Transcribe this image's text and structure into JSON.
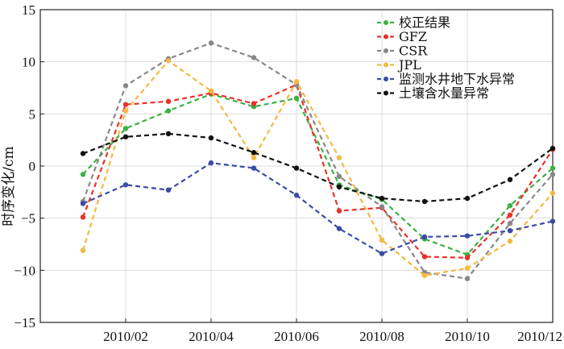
{
  "chart_data": {
    "type": "line",
    "title": "",
    "xlabel": "",
    "ylabel": "时序变化/cm",
    "ylim": [
      -15,
      15
    ],
    "yticks": [
      15,
      10,
      5,
      0,
      -5,
      -10,
      -15
    ],
    "ytick_labels": [
      "15",
      "10",
      "5",
      "0",
      "−5",
      "−10",
      "−15"
    ],
    "xlim": [
      "2010/00",
      "2010/12"
    ],
    "x": [
      "2010/01",
      "2010/02",
      "2010/03",
      "2010/04",
      "2010/05",
      "2010/06",
      "2010/07",
      "2010/08",
      "2010/09",
      "2010/10",
      "2010/11",
      "2010/12"
    ],
    "xticks": [
      "2010/02",
      "2010/04",
      "2010/06",
      "2010/08",
      "2010/10",
      "2010/12"
    ],
    "grid": true,
    "legend_position": "top-right",
    "series": [
      {
        "name": "校正结果",
        "color": "#3cb043",
        "values": [
          -0.8,
          3.6,
          5.3,
          6.9,
          5.7,
          6.5,
          -1.8,
          -3.2,
          -7.0,
          -8.5,
          -3.8,
          -0.2
        ]
      },
      {
        "name": "GFZ",
        "color": "#e8312a",
        "values": [
          -4.9,
          5.9,
          6.2,
          7.0,
          6.0,
          7.8,
          -4.3,
          -4.0,
          -8.7,
          -8.8,
          -4.7,
          1.6
        ]
      },
      {
        "name": "CSR",
        "color": "#888888",
        "values": [
          -3.4,
          7.7,
          10.3,
          11.8,
          10.4,
          7.8,
          -1.0,
          -3.9,
          -10.2,
          -10.8,
          -5.5,
          -0.8
        ]
      },
      {
        "name": "JPL",
        "color": "#f4b943",
        "values": [
          -8.1,
          5.3,
          10.1,
          7.2,
          0.8,
          8.1,
          0.8,
          -7.1,
          -10.5,
          -9.8,
          -7.2,
          -2.6
        ]
      },
      {
        "name": "监测水井地下水异常",
        "color": "#3b4ba8",
        "values": [
          -3.6,
          -1.8,
          -2.3,
          0.3,
          -0.2,
          -2.8,
          -6.0,
          -8.4,
          -6.8,
          -6.7,
          -6.2,
          -5.3
        ]
      },
      {
        "name": "土壤含水量异常",
        "color": "#111111",
        "values": [
          1.2,
          2.8,
          3.1,
          2.7,
          1.3,
          -0.2,
          -2.0,
          -3.1,
          -3.4,
          -3.1,
          -1.3,
          1.7
        ]
      }
    ]
  }
}
